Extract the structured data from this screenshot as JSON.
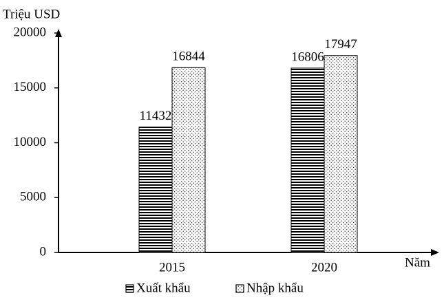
{
  "chart_data": {
    "type": "bar",
    "y_label": "Triệu USD",
    "x_label": "Năm",
    "categories": [
      "2015",
      "2020"
    ],
    "series": [
      {
        "name": "Xuất khẩu",
        "color": "#000000",
        "pattern": "horizontal-lines",
        "values": [
          11432,
          16806
        ]
      },
      {
        "name": "Nhập khẩu",
        "color": "#000000",
        "pattern": "dots",
        "values": [
          16844,
          17947
        ]
      }
    ],
    "ylim": [
      0,
      20000
    ],
    "yticks": [
      0,
      5000,
      10000,
      15000,
      20000
    ],
    "grid": false,
    "legend": "bottom"
  }
}
